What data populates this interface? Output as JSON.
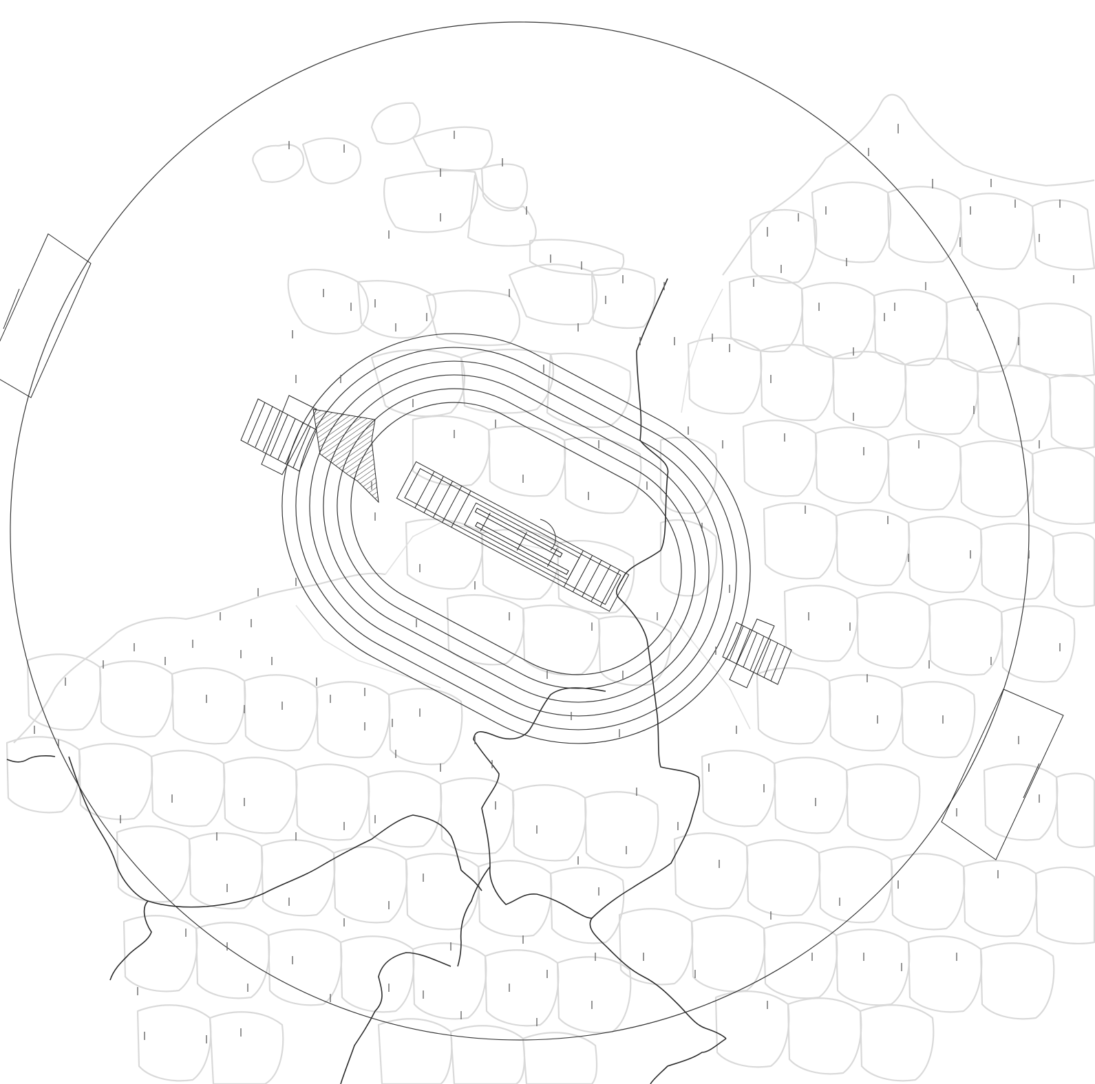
{
  "map": {
    "background_color": "#ffffff",
    "region_boundary_color": "#d9d9d9",
    "airspace_line_color": "#333333",
    "national_border_color": "#2a2a2a",
    "labels_legible": false,
    "features": [
      "outer-control-area-circle",
      "holding-pattern-racetracks",
      "runway-complex",
      "approach-corridor-northwest",
      "approach-corridor-southeast",
      "sector-boxes-west-and-east",
      "administrative-region-boundaries",
      "national-borders"
    ]
  }
}
